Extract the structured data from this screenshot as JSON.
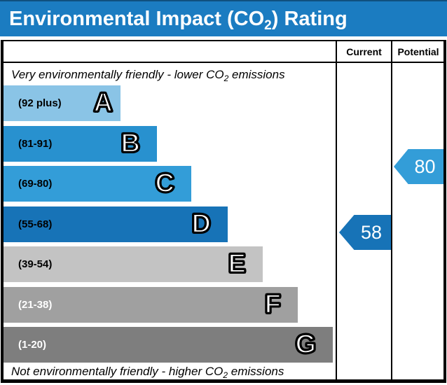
{
  "title": {
    "prefix": "Environmental Impact (CO",
    "sub": "2",
    "suffix": ") Rating"
  },
  "header": {
    "current": "Current",
    "potential": "Potential"
  },
  "notes": {
    "top": {
      "prefix": "Very environmentally friendly - lower CO",
      "sub": "2",
      "suffix": " emissions"
    },
    "bottom": {
      "prefix": "Not environmentally friendly - higher CO",
      "sub": "2",
      "suffix": " emissions"
    }
  },
  "colors": {
    "title_bar": "#1b7cc1",
    "band_a": "#8ac4e6",
    "band_b": "#2891cf",
    "band_c": "#339dd8",
    "band_d": "#1773b7",
    "band_e": "#c3c3c3",
    "band_f": "#a0a0a0",
    "band_g": "#7e7e7e",
    "current_arrow": "#1773b7",
    "potential_arrow": "#339dd8"
  },
  "chart_data": {
    "type": "bar",
    "title": "Environmental Impact (CO2) Rating",
    "categories": [
      "A",
      "B",
      "C",
      "D",
      "E",
      "F",
      "G"
    ],
    "bands": [
      {
        "letter": "A",
        "range_label": "(92 plus)",
        "min": 92,
        "max": 100,
        "color": "#8ac4e6",
        "label_color": "#000000"
      },
      {
        "letter": "B",
        "range_label": "(81-91)",
        "min": 81,
        "max": 91,
        "color": "#2891cf",
        "label_color": "#000000"
      },
      {
        "letter": "C",
        "range_label": "(69-80)",
        "min": 69,
        "max": 80,
        "color": "#339dd8",
        "label_color": "#000000"
      },
      {
        "letter": "D",
        "range_label": "(55-68)",
        "min": 55,
        "max": 68,
        "color": "#1773b7",
        "label_color": "#000000"
      },
      {
        "letter": "E",
        "range_label": "(39-54)",
        "min": 39,
        "max": 54,
        "color": "#c3c3c3",
        "label_color": "#000000"
      },
      {
        "letter": "F",
        "range_label": "(21-38)",
        "min": 21,
        "max": 38,
        "color": "#a0a0a0",
        "label_color": "#ffffff"
      },
      {
        "letter": "G",
        "range_label": "(1-20)",
        "min": 1,
        "max": 20,
        "color": "#7e7e7e",
        "label_color": "#ffffff"
      }
    ],
    "series": [
      {
        "name": "Current",
        "value": 58,
        "band": "D",
        "color": "#1773b7"
      },
      {
        "name": "Potential",
        "value": 80,
        "band": "C",
        "color": "#339dd8"
      }
    ],
    "current": {
      "value": 58,
      "band": "D"
    },
    "potential": {
      "value": 80,
      "band": "C"
    },
    "top_note": "Very environmentally friendly - lower CO2 emissions",
    "bottom_note": "Not environmentally friendly - higher CO2 emissions",
    "legend_position": "none",
    "grid": false
  }
}
